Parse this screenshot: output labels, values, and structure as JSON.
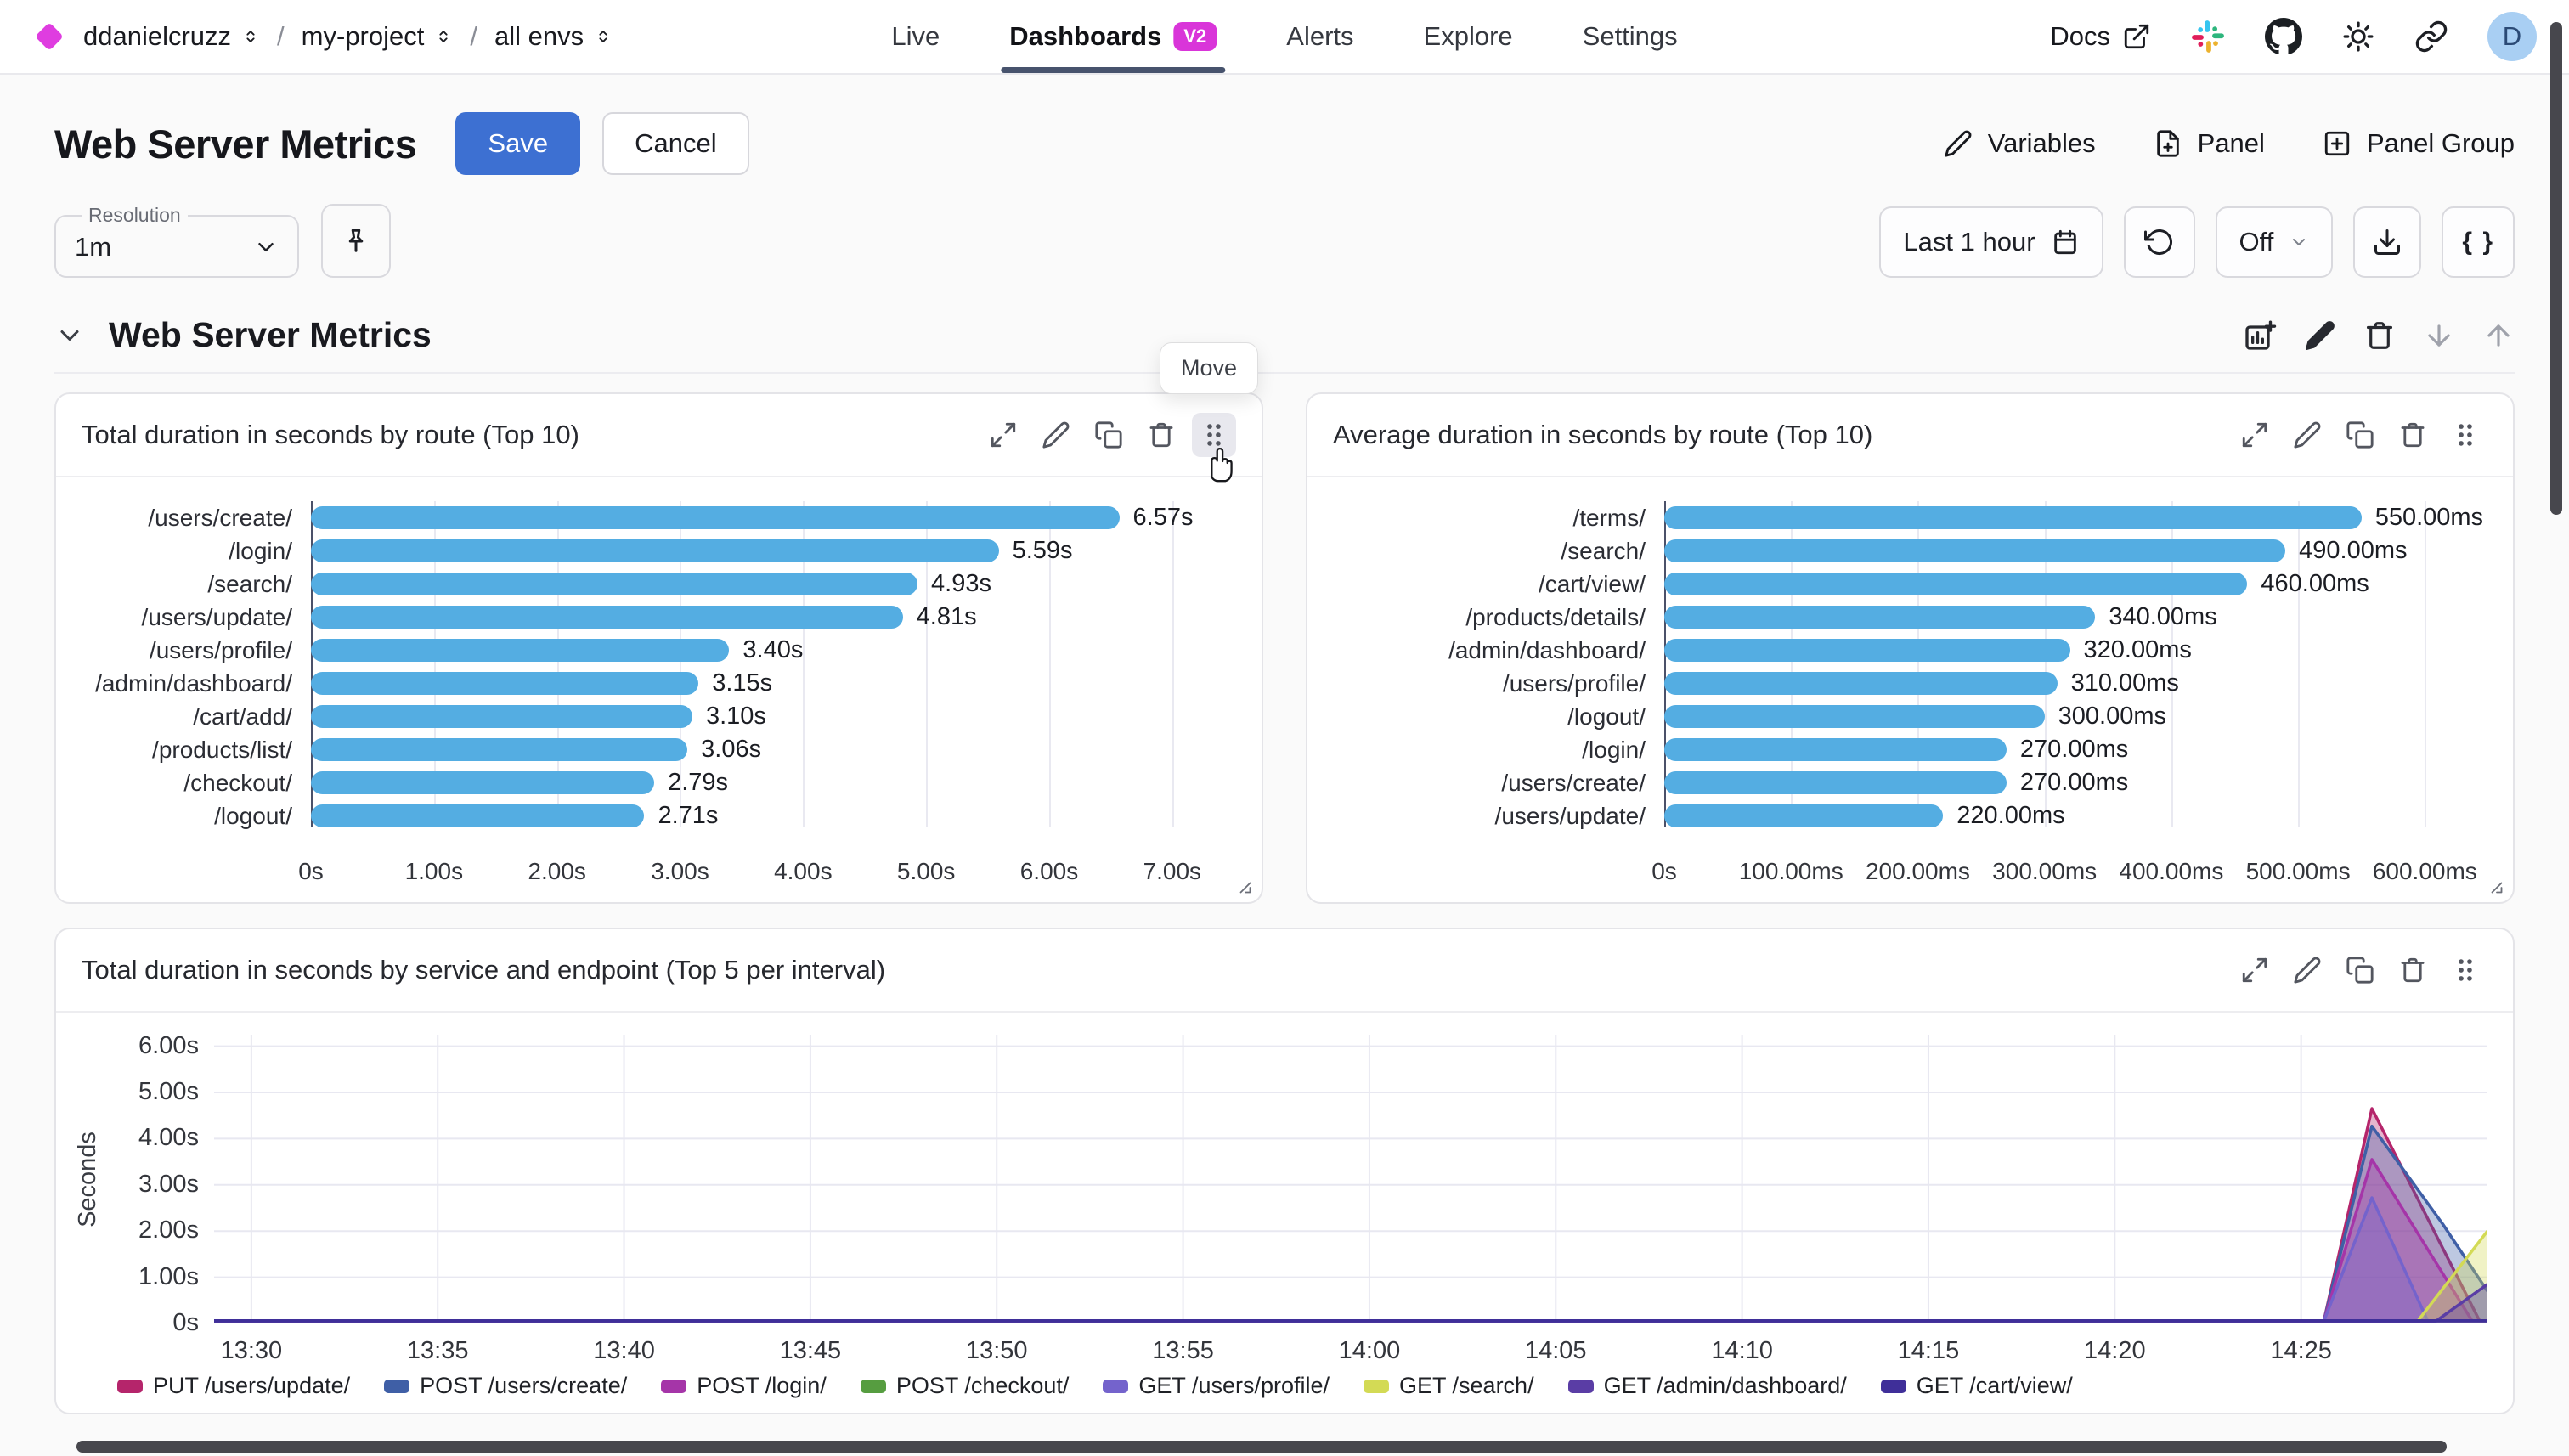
{
  "nav": {
    "breadcrumb": [
      {
        "label": "ddanielcruzz"
      },
      {
        "label": "my-project"
      },
      {
        "label": "all envs"
      }
    ],
    "separator": "/",
    "tabs": [
      {
        "label": "Live"
      },
      {
        "label": "Dashboards",
        "badge": "V2",
        "active": true
      },
      {
        "label": "Alerts"
      },
      {
        "label": "Explore"
      },
      {
        "label": "Settings"
      }
    ],
    "right": {
      "docs_label": "Docs",
      "avatar_initial": "D"
    }
  },
  "header": {
    "title": "Web Server Metrics",
    "save_label": "Save",
    "cancel_label": "Cancel",
    "actions": [
      {
        "label": "Variables"
      },
      {
        "label": "Panel"
      },
      {
        "label": "Panel Group"
      }
    ]
  },
  "toolbar": {
    "resolution_label": "Resolution",
    "resolution_value": "1m",
    "time_range": "Last 1 hour",
    "refresh_value": "Off",
    "braces_label": "{ }"
  },
  "section": {
    "title": "Web Server Metrics"
  },
  "move_tooltip": "Move",
  "colors": {
    "accent_blue": "#3D70D2",
    "bar_blue": "#54ADE2",
    "badge_magenta": "#D935D9",
    "brand_diamond": "#DF3DE0",
    "tab_underline": "#47536D",
    "avatar_bg": "#A9CFF3"
  },
  "chart_data": [
    {
      "id": "bar0",
      "type": "bar",
      "orientation": "horizontal",
      "title": "Total duration in seconds by route (Top 10)",
      "categories": [
        "/users/create/",
        "/login/",
        "/search/",
        "/users/update/",
        "/users/profile/",
        "/admin/dashboard/",
        "/cart/add/",
        "/products/list/",
        "/checkout/",
        "/logout/"
      ],
      "values": [
        6.57,
        5.59,
        4.93,
        4.81,
        3.4,
        3.15,
        3.1,
        3.06,
        2.79,
        2.71
      ],
      "value_labels": [
        "6.57s",
        "5.59s",
        "4.93s",
        "4.81s",
        "3.40s",
        "3.15s",
        "3.10s",
        "3.06s",
        "2.79s",
        "2.71s"
      ],
      "x_ticks": [
        {
          "v": 0,
          "label": "0s"
        },
        {
          "v": 1,
          "label": "1.00s"
        },
        {
          "v": 2,
          "label": "2.00s"
        },
        {
          "v": 3,
          "label": "3.00s"
        },
        {
          "v": 4,
          "label": "4.00s"
        },
        {
          "v": 5,
          "label": "5.00s"
        },
        {
          "v": 6,
          "label": "6.00s"
        },
        {
          "v": 7,
          "label": "7.00s"
        }
      ],
      "xmax": 7.45,
      "bar_color": "#54ADE2",
      "label_col": 300,
      "right_pad": 40
    },
    {
      "id": "bar1",
      "type": "bar",
      "orientation": "horizontal",
      "title": "Average duration in seconds by route (Top 10)",
      "categories": [
        "/terms/",
        "/search/",
        "/cart/view/",
        "/products/details/",
        "/admin/dashboard/",
        "/users/profile/",
        "/logout/",
        "/login/",
        "/users/create/",
        "/users/update/"
      ],
      "values": [
        550,
        490,
        460,
        340,
        320,
        310,
        300,
        270,
        270,
        220
      ],
      "value_labels": [
        "550.00ms",
        "490.00ms",
        "460.00ms",
        "340.00ms",
        "320.00ms",
        "310.00ms",
        "300.00ms",
        "270.00ms",
        "270.00ms",
        "220.00ms"
      ],
      "x_ticks": [
        {
          "v": 0,
          "label": "0s"
        },
        {
          "v": 100,
          "label": "100.00ms"
        },
        {
          "v": 200,
          "label": "200.00ms"
        },
        {
          "v": 300,
          "label": "300.00ms"
        },
        {
          "v": 400,
          "label": "400.00ms"
        },
        {
          "v": 500,
          "label": "500.00ms"
        },
        {
          "v": 600,
          "label": "600.00ms"
        }
      ],
      "xmax": 640,
      "bar_color": "#54ADE2",
      "label_col": 420,
      "right_pad": 44
    },
    {
      "id": "line0",
      "type": "area",
      "title": "Total duration in seconds by service and endpoint (Top 5 per interval)",
      "ylabel": "Seconds",
      "ymax": 6.25,
      "y_ticks": [
        {
          "v": 0,
          "label": "0s"
        },
        {
          "v": 1,
          "label": "1.00s"
        },
        {
          "v": 2,
          "label": "2.00s"
        },
        {
          "v": 3,
          "label": "3.00s"
        },
        {
          "v": 4,
          "label": "4.00s"
        },
        {
          "v": 5,
          "label": "5.00s"
        },
        {
          "v": 6,
          "label": "6.00s"
        }
      ],
      "domain": [
        0,
        61
      ],
      "x_ticks": [
        {
          "t": 1,
          "label": "13:30"
        },
        {
          "t": 6,
          "label": "13:35"
        },
        {
          "t": 11,
          "label": "13:40"
        },
        {
          "t": 16,
          "label": "13:45"
        },
        {
          "t": 21,
          "label": "13:50"
        },
        {
          "t": 26,
          "label": "13:55"
        },
        {
          "t": 31,
          "label": "14:00"
        },
        {
          "t": 36,
          "label": "14:05"
        },
        {
          "t": 41,
          "label": "14:10"
        },
        {
          "t": 46,
          "label": "14:15"
        },
        {
          "t": 51,
          "label": "14:20"
        },
        {
          "t": 56,
          "label": "14:25"
        }
      ],
      "x_gridlines": [
        1,
        6,
        11,
        16,
        21,
        26,
        31,
        36,
        41,
        46,
        51,
        56,
        61
      ],
      "area_opacity": 0.34,
      "series": [
        {
          "name": "PUT /users/update/",
          "color": "#B5256B",
          "points": [
            [
              0,
              0.02
            ],
            [
              56.6,
              0.02
            ],
            [
              57.9,
              4.65
            ],
            [
              60.8,
              0.04
            ],
            [
              61,
              0.04
            ]
          ]
        },
        {
          "name": "POST /users/create/",
          "color": "#3F5FA6",
          "points": [
            [
              0,
              0.02
            ],
            [
              56.6,
              0.02
            ],
            [
              57.9,
              4.27
            ],
            [
              59.8,
              2.15
            ],
            [
              61,
              0.7
            ]
          ]
        },
        {
          "name": "POST /login/",
          "color": "#A535A8",
          "points": [
            [
              0,
              0.02
            ],
            [
              56.6,
              0.02
            ],
            [
              57.9,
              3.55
            ],
            [
              60.6,
              0.04
            ],
            [
              61,
              0.04
            ]
          ]
        },
        {
          "name": "POST /checkout/",
          "color": "#569D40",
          "points": [
            [
              0,
              0.02
            ],
            [
              61,
              0.02
            ]
          ]
        },
        {
          "name": "GET /users/profile/",
          "color": "#7463CC",
          "points": [
            [
              0,
              0.03
            ],
            [
              56.6,
              0.03
            ],
            [
              57.9,
              2.72
            ],
            [
              59.4,
              0.05
            ],
            [
              61,
              0.05
            ]
          ]
        },
        {
          "name": "GET /search/",
          "color": "#D3DA55",
          "points": [
            [
              0,
              0.02
            ],
            [
              59.1,
              0.02
            ],
            [
              61,
              2.0
            ]
          ]
        },
        {
          "name": "GET /admin/dashboard/",
          "color": "#5A3DA5",
          "points": [
            [
              0,
              0.04
            ],
            [
              59.6,
              0.04
            ],
            [
              61,
              0.85
            ]
          ]
        },
        {
          "name": "GET /cart/view/",
          "color": "#3F2F99",
          "points": [
            [
              0,
              0.06
            ],
            [
              61,
              0.06
            ]
          ]
        }
      ]
    }
  ]
}
